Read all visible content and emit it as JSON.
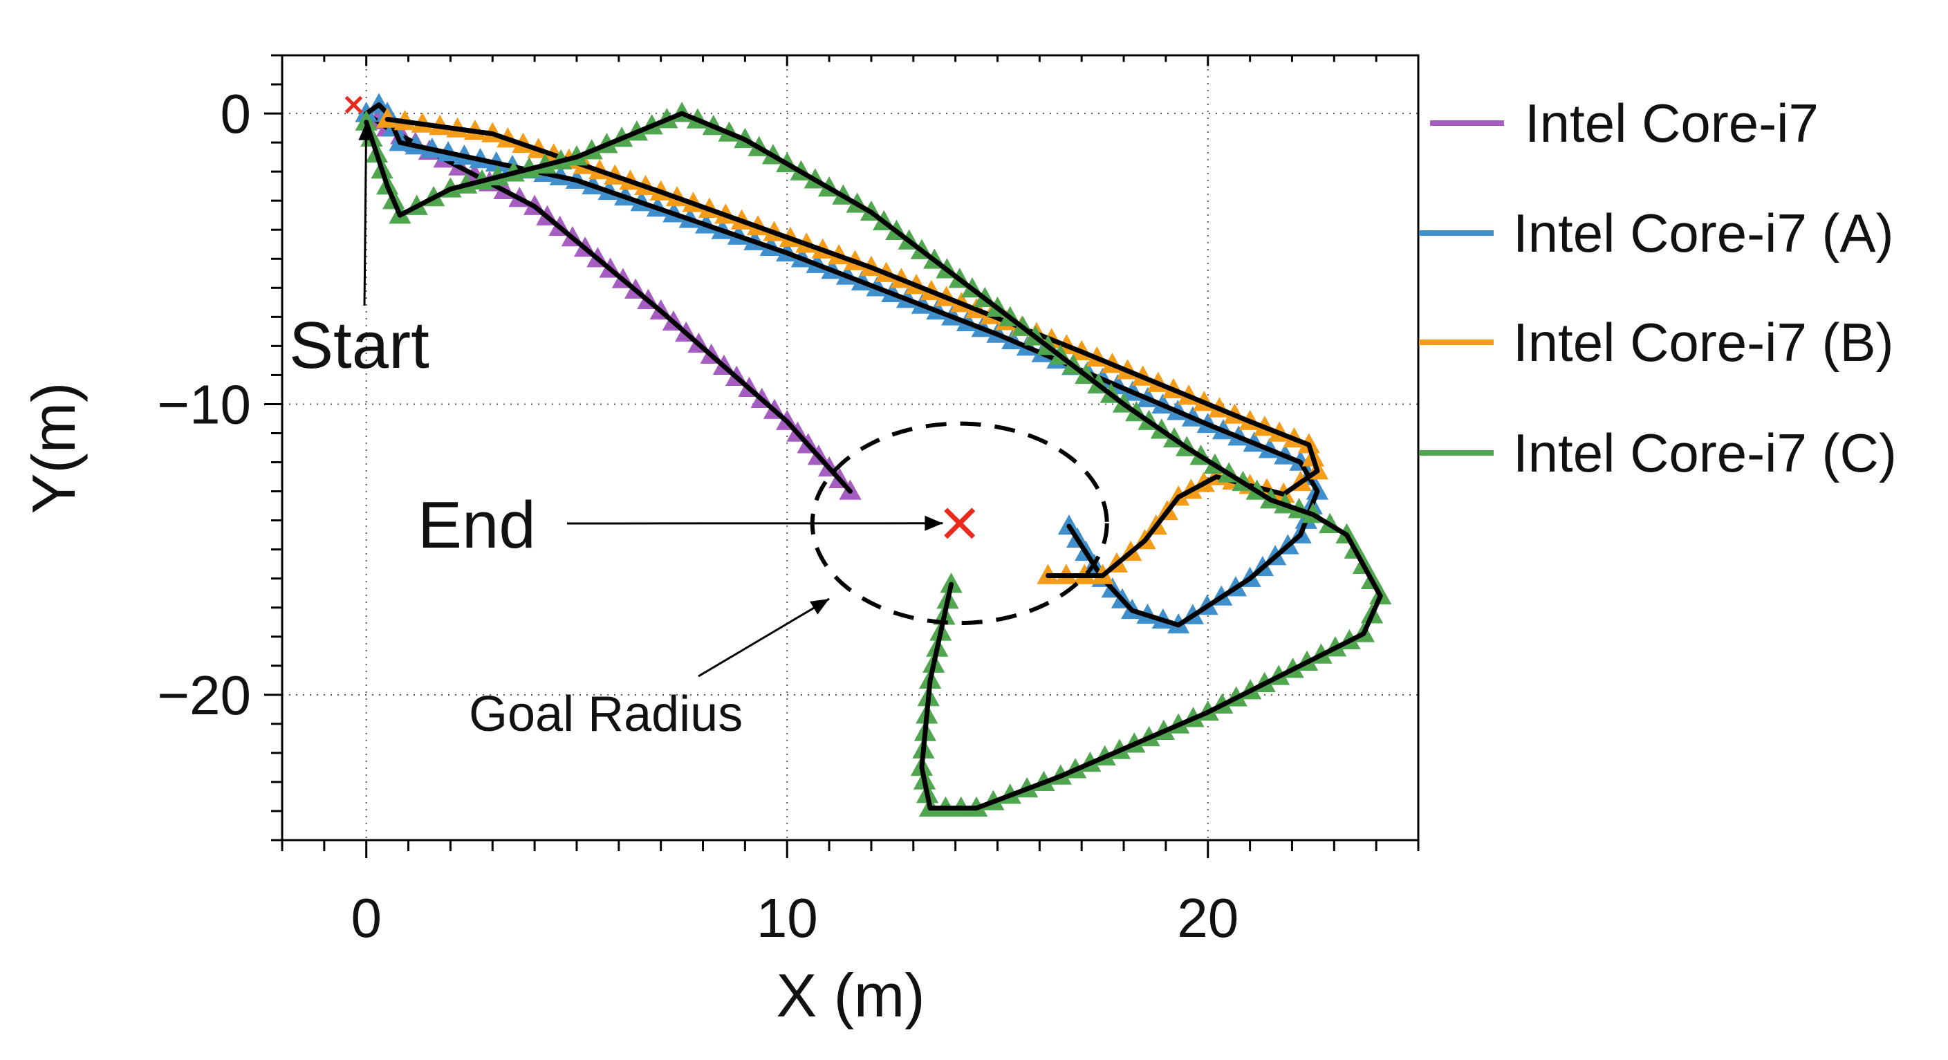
{
  "chart_data": {
    "type": "line",
    "xlabel": "X (m)",
    "ylabel": "Y(m)",
    "xlim": [
      -2,
      25
    ],
    "ylim": [
      -25,
      2
    ],
    "x_ticks": [
      0,
      10,
      20
    ],
    "y_ticks": [
      0,
      -10,
      -20
    ],
    "x_tick_labels": [
      "0",
      "10",
      "20"
    ],
    "y_tick_labels": [
      "0",
      "−10",
      "−20"
    ],
    "grid": "dotted",
    "legend_position": "right",
    "series": [
      {
        "name": "Intel Core-i7",
        "color": "#a55dc2",
        "points": [
          [
            0,
            0
          ],
          [
            0.5,
            -0.5
          ],
          [
            1.5,
            -1.3
          ],
          [
            4,
            -3.2
          ],
          [
            7,
            -6.8
          ],
          [
            10,
            -10.6
          ],
          [
            11.5,
            -13
          ]
        ]
      },
      {
        "name": "Intel Core-i7 (A)",
        "color": "#3f8fcc",
        "points": [
          [
            0,
            0
          ],
          [
            0.3,
            0.3
          ],
          [
            0.5,
            0
          ],
          [
            0.8,
            -1
          ],
          [
            5,
            -2.3
          ],
          [
            10,
            -4.8
          ],
          [
            15,
            -7.6
          ],
          [
            20,
            -10.7
          ],
          [
            22.2,
            -12
          ],
          [
            22.6,
            -13
          ],
          [
            22.2,
            -14.5
          ],
          [
            21,
            -16
          ],
          [
            19.3,
            -17.6
          ],
          [
            18.2,
            -17.1
          ],
          [
            17.5,
            -16
          ],
          [
            16.7,
            -14.2
          ]
        ]
      },
      {
        "name": "Intel Core-i7 (B)",
        "color": "#f49b18",
        "points": [
          [
            0.5,
            -0.2
          ],
          [
            3,
            -0.7
          ],
          [
            7,
            -2.7
          ],
          [
            12,
            -5.3
          ],
          [
            17,
            -8.2
          ],
          [
            21,
            -10.6
          ],
          [
            22.4,
            -11.4
          ],
          [
            22.6,
            -12.3
          ],
          [
            21.8,
            -13.1
          ],
          [
            20.2,
            -12.5
          ],
          [
            19.3,
            -13.2
          ],
          [
            18.5,
            -14.7
          ],
          [
            17.5,
            -15.9
          ],
          [
            16.2,
            -15.9
          ]
        ]
      },
      {
        "name": "Intel Core-i7 (C)",
        "color": "#4fa64f",
        "points": [
          [
            0,
            -0.3
          ],
          [
            0.5,
            -2.5
          ],
          [
            0.8,
            -3.5
          ],
          [
            2,
            -2.6
          ],
          [
            5,
            -1.5
          ],
          [
            7.5,
            0
          ],
          [
            9,
            -0.9
          ],
          [
            12,
            -3.4
          ],
          [
            15,
            -6.7
          ],
          [
            18,
            -10
          ],
          [
            19.5,
            -11.5
          ],
          [
            21.5,
            -13.3
          ],
          [
            22.5,
            -13.8
          ],
          [
            23.3,
            -14.5
          ],
          [
            24.1,
            -16.6
          ],
          [
            23.7,
            -17.9
          ],
          [
            20,
            -20.6
          ],
          [
            16.5,
            -22.8
          ],
          [
            14.5,
            -23.9
          ],
          [
            13.4,
            -23.9
          ],
          [
            13.2,
            -22.5
          ],
          [
            13.4,
            -19.5
          ],
          [
            13.9,
            -16.2
          ]
        ]
      }
    ],
    "start_marker": [
      -0.3,
      0.3
    ],
    "goal": {
      "center": [
        14.1,
        -14.1
      ],
      "radius": 3.5
    },
    "annotations": [
      {
        "text": "Start",
        "target": [
          0,
          -0.3
        ]
      },
      {
        "text": "End",
        "target": [
          13.7,
          -14.1
        ]
      },
      {
        "text": "Goal Radius",
        "target": [
          11,
          -16.7
        ]
      }
    ]
  },
  "colors": {
    "reference_path": "#000000",
    "goal_marker": "#e8291c"
  }
}
